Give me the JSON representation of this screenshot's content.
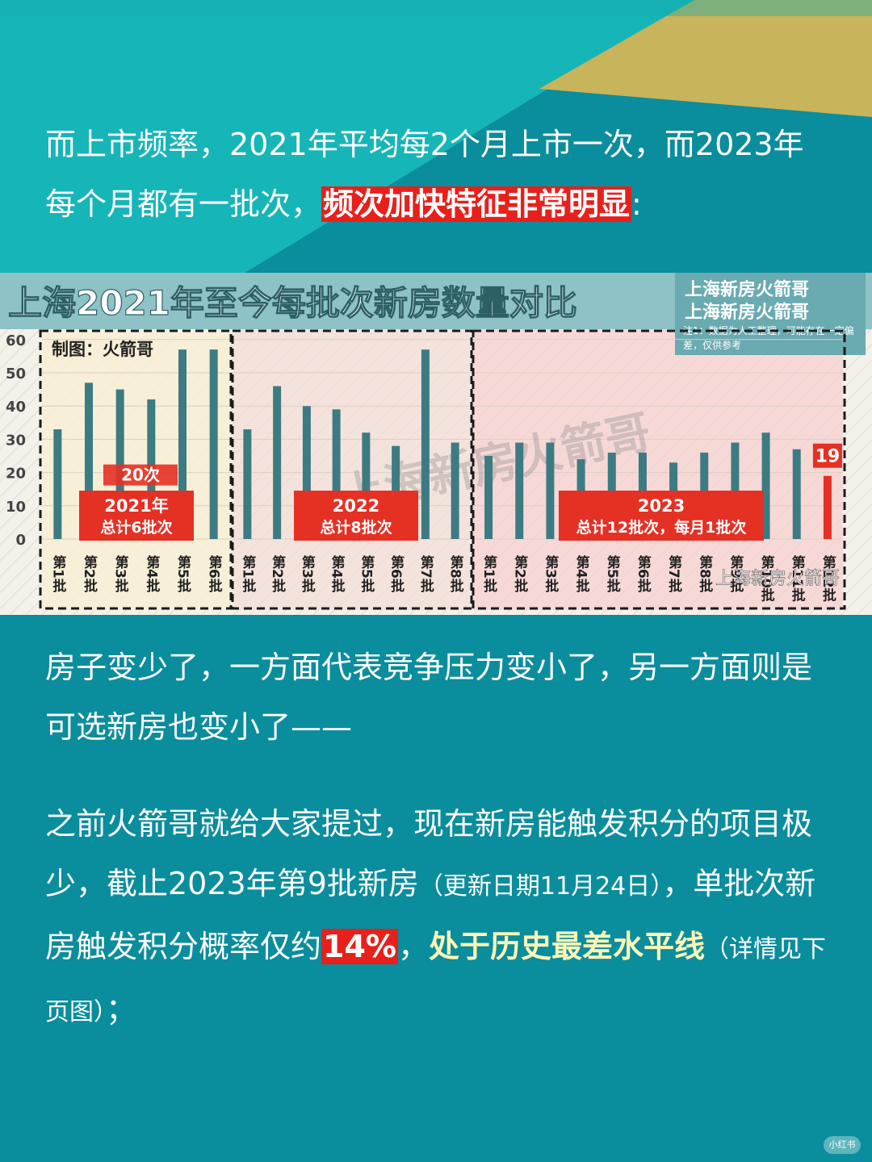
{
  "intro": {
    "part1": "而上市频率，2021年平均每2个月上市一次，而2023年每个月都有一批次，",
    "highlight": "频次加快特征非常明显",
    "end": ":"
  },
  "chart_data": {
    "type": "bar",
    "title": "上海2021年至今每批次新房数量对比",
    "brand_lines": [
      "上海新房火箭哥",
      "上海新房火箭哥"
    ],
    "note": "注1：数据为人工整理，可能存在一定偏差，仅供参考",
    "credit": "制图：火箭哥",
    "watermark": "上海新房火箭哥",
    "watermark_small": "上海新房火箭哥",
    "yticks": [
      0,
      10,
      20,
      30,
      40,
      50,
      60
    ],
    "ylim": [
      0,
      60
    ],
    "grid": true,
    "ref_label": "20次",
    "ref_value": 20,
    "groups": [
      {
        "year": "2021",
        "box_line1": "2021年",
        "box_line2": "总计6批次",
        "categories": [
          "第1批",
          "第2批",
          "第3批",
          "第4批",
          "第5批",
          "第6批"
        ],
        "values": [
          33,
          47,
          45,
          42,
          57,
          57
        ]
      },
      {
        "year": "2022",
        "box_line1": "2022",
        "box_line2": "总计8批次",
        "categories": [
          "第1批",
          "第2批",
          "第3批",
          "第4批",
          "第5批",
          "第6批",
          "第7批",
          "第8批"
        ],
        "values": [
          33,
          46,
          40,
          39,
          32,
          28,
          57,
          29
        ]
      },
      {
        "year": "2023",
        "box_line1": "2023",
        "box_line2": "总计12批次，每月1批次",
        "categories": [
          "第1批",
          "第2批",
          "第3批",
          "第4批",
          "第5批",
          "第6批",
          "第7批",
          "第8批",
          "第9批",
          "第10批",
          "第11批",
          "第12批"
        ],
        "values": [
          25,
          29,
          29,
          24,
          26,
          26,
          23,
          26,
          29,
          32,
          27,
          19
        ],
        "last_label": "19"
      }
    ],
    "colors": {
      "bar": "#3d7b82",
      "last_bar": "#e53024",
      "label_bg": "#e53024"
    }
  },
  "para2": {
    "text": "房子变少了，一方面代表竞争压力变小了，另一方面则是可选新房也变小了——"
  },
  "para3": {
    "part1": "之前火箭哥就给大家提过，现在新房能触发积分的项目极少，截止2023年第9批新房",
    "small": "（更新日期11月24日）",
    "part2": "，单批次新房触发积分概率仅约",
    "pct": "14%",
    "comma": "，",
    "yellow": "处于历史最差水平线",
    "small2": "（详情见下页图）",
    "end": "；"
  },
  "logo": "小红书",
  "colors": {
    "background": "#0a8d9c",
    "accent_yellow": "#c8b45a",
    "highlight_red": "#e8201b"
  }
}
